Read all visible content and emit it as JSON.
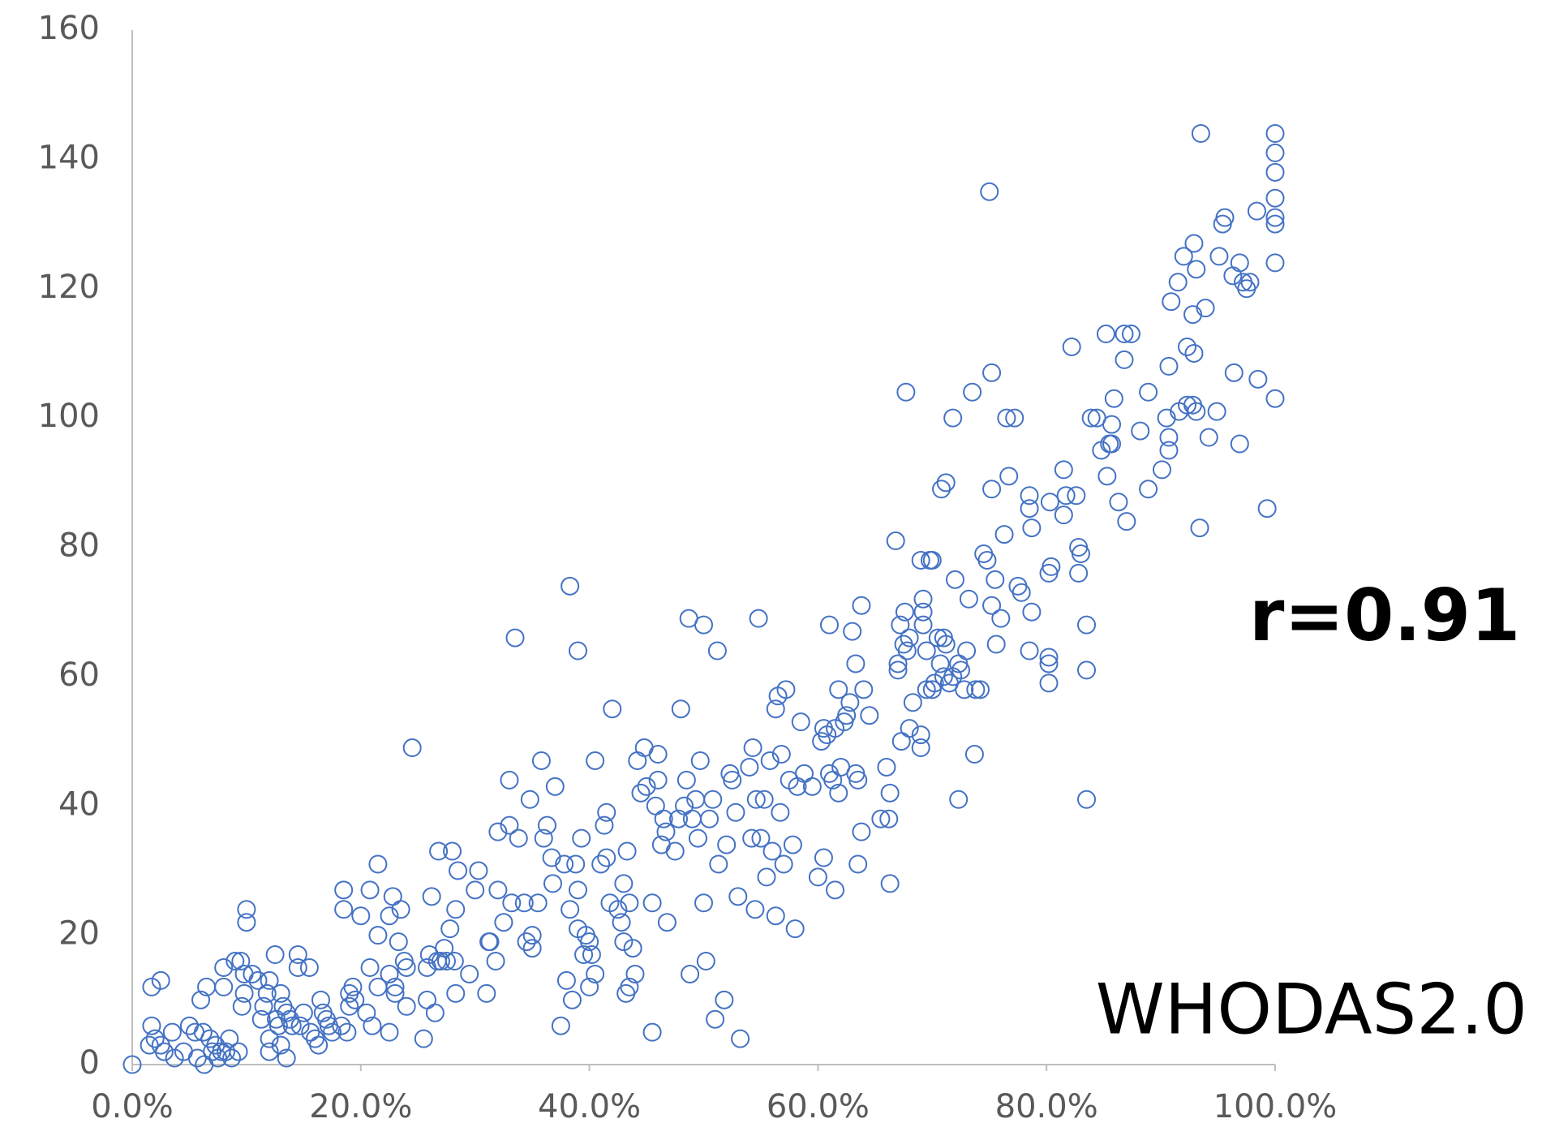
{
  "chart_data": {
    "type": "scatter",
    "annotations": [
      "r=0.91",
      "WHODAS2.0"
    ],
    "color": "#4472c4",
    "xlim": [
      0,
      100
    ],
    "xticks": [
      {
        "value": 0,
        "label": "0.0%"
      },
      {
        "value": 20,
        "label": "20.0%"
      },
      {
        "value": 40,
        "label": "40.0%"
      },
      {
        "value": 60,
        "label": "60.0%"
      },
      {
        "value": 80,
        "label": "80.0%"
      },
      {
        "value": 100,
        "label": "100.0%"
      }
    ],
    "ylim": [
      0,
      160
    ],
    "yticks": [
      0,
      20,
      40,
      60,
      80,
      100,
      120,
      140,
      160
    ],
    "grid": false,
    "x": [
      0,
      1.7,
      2.5,
      1.7,
      1.5,
      2,
      2.5,
      2.8,
      3.5,
      3.7,
      4.5,
      5,
      5.5,
      5.7,
      6,
      6.2,
      6.3,
      6.5,
      6.8,
      7,
      7.3,
      7.5,
      7.8,
      8,
      8,
      8.2,
      8.5,
      8.7,
      9,
      9.3,
      9.5,
      9.6,
      9.8,
      9.8,
      10,
      10,
      10.5,
      11,
      11.5,
      11.3,
      11.8,
      12,
      12,
      12,
      12.5,
      12.6,
      12.8,
      13,
      13,
      13.2,
      13.5,
      13.5,
      13.8,
      14,
      14.5,
      14.5,
      14.7,
      15,
      15.5,
      15.6,
      16,
      16.3,
      16.5,
      16.7,
      17,
      17.2,
      17.5,
      18.3,
      18.5,
      18.5,
      18.8,
      19,
      19,
      19.3,
      19.5,
      20,
      20.5,
      20.8,
      20.8,
      21,
      21.5,
      21.5,
      21.5,
      22.5,
      22.5,
      22.5,
      22.8,
      23,
      23,
      23.3,
      23.5,
      23.8,
      24,
      24,
      24.5,
      25.5,
      25.8,
      25.8,
      26,
      26.2,
      26.5,
      26.7,
      26.8,
      27,
      27.3,
      27.5,
      27.8,
      28,
      28.2,
      28.3,
      28.3,
      28.5,
      29.5,
      30,
      30.3,
      31,
      31.2,
      31.3,
      31.8,
      32,
      32,
      32.5,
      33,
      33,
      33.2,
      33.5,
      33.8,
      34.3,
      34.5,
      34.8,
      35,
      35,
      35.5,
      35.8,
      36,
      36.3,
      36.7,
      36.8,
      37,
      37.5,
      37.8,
      38,
      38.3,
      38.3,
      38.5,
      38.8,
      39,
      39,
      39,
      39.3,
      39.5,
      39.7,
      40,
      40,
      40.2,
      40.5,
      40.5,
      41,
      41.3,
      41.5,
      41.5,
      41.8,
      42,
      42.5,
      42.8,
      43,
      43,
      43.2,
      43.3,
      43.5,
      43.5,
      43.8,
      44,
      44.2,
      44.5,
      44.8,
      45,
      45.5,
      45.5,
      45.8,
      46,
      46,
      46.3,
      46.5,
      46.7,
      46.8,
      47.5,
      47.8,
      48,
      48.3,
      48.5,
      48.7,
      48.8,
      49,
      49.3,
      49.5,
      49.7,
      50,
      50,
      50.2,
      50.5,
      50.8,
      51,
      51.2,
      51.3,
      51.8,
      52,
      52.3,
      52.5,
      52.8,
      53,
      53.2,
      54,
      54.2,
      54.3,
      54.5,
      54.6,
      54.8,
      55,
      55.3,
      55.5,
      55.8,
      56,
      56.3,
      56.3,
      56.5,
      56.7,
      56.8,
      57,
      57.2,
      57.5,
      57.8,
      58,
      58.2,
      58.5,
      58.8,
      59.5,
      60,
      60.3,
      60.5,
      60.5,
      61,
      61.3,
      61.5,
      61.8,
      63.8,
      63.3,
      63,
      63.3,
      63.5,
      63.5,
      63.8,
      64,
      64.5,
      62.5,
      62.8,
      62,
      61.8,
      61.5,
      62.3,
      60.8,
      61,
      65.5,
      66,
      66.3,
      66.3,
      66.2,
      67,
      67,
      66.8,
      67.2,
      67.6,
      67.7,
      67.5,
      68,
      67.8,
      67.3,
      68.3,
      68,
      69,
      69,
      69.2,
      69.2,
      69.2,
      69.5,
      69,
      69.8,
      69.5,
      70,
      70.2,
      70.7,
      71,
      71,
      71.2,
      71.5,
      71.8,
      72,
      72.3,
      72.3,
      72.5,
      72.8,
      73,
      73.2,
      73.7,
      73.8,
      74.2,
      74.5,
      74.8,
      73.5,
      75,
      75.2,
      75.2,
      75.5,
      75.2,
      75.6,
      76,
      76.3,
      76.7,
      76.5,
      77.2,
      77.5,
      77.8,
      78.5,
      78.5,
      78.7,
      78.7,
      78.5,
      70.8,
      71.2,
      71.8,
      70.5,
      70,
      93.5,
      100,
      100,
      100,
      100,
      100,
      100,
      100,
      100,
      99.3,
      98.4,
      98.5,
      96.9,
      96.4,
      95.6,
      95.4,
      96.3,
      96.9,
      97.5,
      97.8,
      97.2,
      94.9,
      95.1,
      94.2,
      93.9,
      93.4,
      93.1,
      92.9,
      93.1,
      92.8,
      92.3,
      92.8,
      92.9,
      92.3,
      92,
      91.5,
      90.9,
      91.6,
      90.7,
      90.7,
      90.7,
      90.5,
      90.1,
      88.9,
      88.9,
      88.2,
      87.4,
      86.8,
      86.8,
      87,
      86.3,
      85.9,
      85.7,
      85.5,
      85.7,
      85.3,
      84.8,
      85.2,
      84.4,
      83.9,
      83.5,
      83.5,
      83.5,
      83,
      82.8,
      82.8,
      82.6,
      82.2,
      81.7,
      81.5,
      81.5,
      80.4,
      80.2,
      80.3,
      80.2,
      80.2,
      80.2
    ],
    "values": [
      0,
      12,
      13,
      6,
      3,
      4,
      3,
      2,
      5,
      1,
      2,
      6,
      5,
      1,
      10,
      5,
      0,
      12,
      4,
      2,
      3,
      1,
      2,
      15,
      12,
      2,
      4,
      1,
      16,
      2,
      16,
      9,
      14,
      11,
      24,
      22,
      14,
      13,
      9,
      7,
      11,
      13,
      4,
      2,
      17,
      7,
      6,
      3,
      11,
      9,
      8,
      1,
      7,
      6,
      17,
      15,
      6,
      8,
      15,
      5,
      4,
      3,
      10,
      8,
      7,
      6,
      5,
      6,
      27,
      24,
      5,
      11,
      9,
      12,
      10,
      23,
      8,
      27,
      15,
      6,
      31,
      12,
      20,
      5,
      23,
      14,
      26,
      11,
      12,
      19,
      24,
      16,
      9,
      15,
      49,
      4,
      15,
      10,
      17,
      26,
      8,
      16,
      33,
      16,
      18,
      16,
      21,
      33,
      16,
      11,
      24,
      30,
      14,
      27,
      30,
      11,
      19,
      19,
      16,
      27,
      36,
      22,
      44,
      37,
      25,
      66,
      35,
      25,
      19,
      41,
      20,
      18,
      25,
      47,
      35,
      37,
      32,
      28,
      43,
      6,
      31,
      13,
      24,
      74,
      10,
      31,
      64,
      21,
      27,
      35,
      17,
      20,
      19,
      12,
      17,
      14,
      47,
      31,
      37,
      39,
      32,
      25,
      55,
      24,
      22,
      19,
      28,
      11,
      33,
      25,
      12,
      18,
      14,
      47,
      42,
      49,
      43,
      25,
      5,
      40,
      48,
      44,
      34,
      38,
      36,
      22,
      33,
      38,
      55,
      40,
      44,
      69,
      14,
      38,
      41,
      35,
      47,
      68,
      25,
      16,
      38,
      41,
      7,
      64,
      31,
      10,
      34,
      45,
      44,
      39,
      26,
      4,
      46,
      35,
      49,
      24,
      41,
      69,
      35,
      41,
      29,
      47,
      33,
      23,
      55,
      57,
      39,
      48,
      31,
      58,
      44,
      34,
      21,
      43,
      53,
      45,
      43,
      29,
      50,
      52,
      32,
      68,
      44,
      52,
      58,
      71,
      62,
      67,
      45,
      44,
      31,
      36,
      58,
      54,
      54,
      56,
      46,
      42,
      27,
      53,
      51,
      45,
      38,
      46,
      42,
      28,
      38,
      61,
      62,
      81,
      68,
      70,
      104,
      65,
      66,
      64,
      50,
      56,
      52,
      49,
      51,
      72,
      70,
      68,
      64,
      78,
      78,
      58,
      58,
      59,
      62,
      66,
      60,
      65,
      59,
      60,
      75,
      41,
      62,
      61,
      58,
      64,
      72,
      48,
      58,
      58,
      79,
      78,
      104,
      135,
      107,
      89,
      75,
      71,
      65,
      69,
      82,
      91,
      100,
      100,
      74,
      73,
      86,
      88,
      83,
      70,
      64,
      89,
      90,
      100,
      66,
      78,
      144,
      144,
      141,
      138,
      134,
      131,
      130,
      124,
      103,
      86,
      132,
      106,
      96,
      107,
      131,
      130,
      122,
      124,
      120,
      121,
      121,
      101,
      125,
      97,
      117,
      83,
      101,
      127,
      123,
      116,
      102,
      102,
      110,
      111,
      125,
      121,
      118,
      101,
      108,
      95,
      97,
      100,
      92,
      89,
      104,
      98,
      113,
      113,
      109,
      84,
      87,
      103,
      99,
      96,
      96,
      91,
      95,
      113,
      100,
      100,
      61,
      68,
      41,
      79,
      80,
      76,
      88,
      111,
      88,
      85,
      92,
      77,
      76,
      87,
      63,
      62,
      59
    ]
  }
}
